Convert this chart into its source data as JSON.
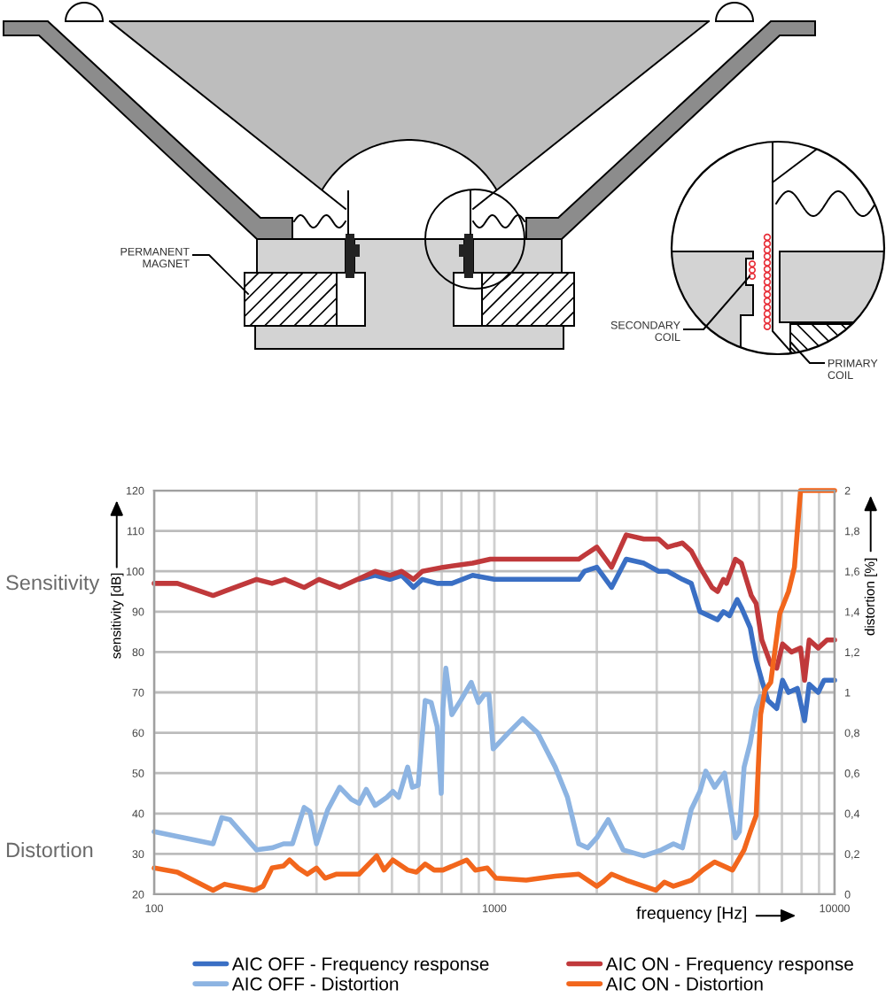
{
  "chart_data": {
    "type": "line",
    "log": "x",
    "grid": true,
    "legend": "bottom",
    "xlabel": "frequency [Hz]",
    "ylabel": "sensitivity [dB]",
    "y2label": "distortion [%]",
    "xlim": [
      100,
      10000
    ],
    "xticks": [
      100,
      {
        "value": 200,
        "label": null
      },
      {
        "value": 300,
        "label": null
      },
      {
        "value": 400,
        "label": null
      },
      {
        "value": 500,
        "label": null
      },
      {
        "value": 600,
        "label": null
      },
      {
        "value": 700,
        "label": null
      },
      {
        "value": 800,
        "label": null
      },
      {
        "value": 900,
        "label": null
      },
      1000,
      {
        "value": 2000,
        "label": null
      },
      {
        "value": 3000,
        "label": null
      },
      {
        "value": 4000,
        "label": null
      },
      {
        "value": 5000,
        "label": null
      },
      {
        "value": 6000,
        "label": null
      },
      {
        "value": 7000,
        "label": null
      },
      {
        "value": 8000,
        "label": null
      },
      {
        "value": 9000,
        "label": null
      },
      10000
    ],
    "ylim": [
      20,
      120
    ],
    "yticks": [
      20,
      30,
      40,
      50,
      60,
      70,
      80,
      90,
      100,
      110,
      120
    ],
    "y2lim": [
      0,
      2
    ],
    "y2ticks": [
      0,
      {
        "value": 0.2,
        "label": "0,2"
      },
      {
        "value": 0.4,
        "label": "0,4"
      },
      {
        "value": 0.6,
        "label": "0,6"
      },
      {
        "value": 0.8,
        "label": "0,8"
      },
      1,
      {
        "value": 1.2,
        "label": "1,2"
      },
      {
        "value": 1.4,
        "label": "1,4"
      },
      {
        "value": 1.6,
        "label": "1,6"
      },
      {
        "value": 1.8,
        "label": "1,8"
      },
      2
    ],
    "annotations": [
      "Sensitivity",
      "Distortion",
      "PERMANENT\nMAGNET",
      "SECONDARY\nCOIL",
      "PRIMARY\nCOIL"
    ],
    "series": [
      {
        "name": "AIC OFF - Frequency response",
        "color": "#3a6fc4",
        "x": [
          400,
          446,
          493,
          534,
          578,
          614,
          679,
          750,
          863,
          1000,
          1240,
          1700,
          1770,
          1840,
          2000,
          2210,
          2440,
          2750,
          3040,
          3230,
          3570,
          3790,
          4020,
          4270,
          4530,
          4710,
          4910,
          5170,
          5320,
          5650,
          5880,
          6110,
          6370,
          6760,
          7030,
          7320,
          7770,
          8160,
          8420,
          8950,
          9310,
          10000
        ],
        "values": [
          98,
          99,
          98,
          99,
          96,
          98,
          97,
          97,
          99,
          98,
          98,
          98,
          98,
          100,
          101,
          96,
          103,
          102,
          100,
          100,
          98,
          97,
          90,
          89,
          88,
          90,
          89,
          93,
          91,
          86,
          78,
          73,
          68,
          66,
          73,
          70,
          71,
          63,
          72,
          70,
          73,
          73
        ]
      },
      {
        "name": "AIC OFF - Distortion",
        "color": "#8db4e2",
        "axis": "y2",
        "x": [
          100,
          149,
          158,
          167,
          200,
          222,
          240,
          255,
          276,
          287,
          300,
          324,
          351,
          380,
          400,
          420,
          446,
          483,
          503,
          523,
          556,
          574,
          597,
          626,
          652,
          679,
          698,
          706,
          720,
          750,
          796,
          855,
          898,
          934,
          964,
          992,
          1100,
          1210,
          1340,
          1510,
          1640,
          1770,
          1880,
          2000,
          2160,
          2390,
          2750,
          3100,
          3360,
          3570,
          3790,
          4020,
          4180,
          4440,
          4750,
          4910,
          5110,
          5250,
          5420,
          5650,
          5880,
          6060
        ],
        "values": [
          0.31,
          0.25,
          0.38,
          0.37,
          0.22,
          0.23,
          0.25,
          0.25,
          0.43,
          0.41,
          0.25,
          0.42,
          0.53,
          0.47,
          0.45,
          0.52,
          0.44,
          0.48,
          0.51,
          0.48,
          0.63,
          0.53,
          0.54,
          0.96,
          0.95,
          0.83,
          0.5,
          0.92,
          1.12,
          0.89,
          0.96,
          1.05,
          0.95,
          0.99,
          0.99,
          0.72,
          0.8,
          0.87,
          0.8,
          0.63,
          0.48,
          0.25,
          0.23,
          0.28,
          0.37,
          0.22,
          0.19,
          0.22,
          0.25,
          0.23,
          0.42,
          0.51,
          0.61,
          0.53,
          0.6,
          0.45,
          0.28,
          0.31,
          0.63,
          0.75,
          0.92,
          0.98
        ]
      },
      {
        "name": "AIC ON - Frequency response",
        "color": "#c0393b",
        "x": [
          100,
          117,
          149,
          200,
          222,
          242,
          276,
          305,
          351,
          446,
          493,
          534,
          578,
          614,
          706,
          863,
          973,
          1240,
          1700,
          1770,
          1840,
          2000,
          2210,
          2440,
          2750,
          3040,
          3230,
          3570,
          3790,
          4020,
          4360,
          4530,
          4710,
          4810,
          5110,
          5320,
          5690,
          5880,
          6110,
          6490,
          6760,
          7030,
          7470,
          7940,
          8160,
          8420,
          8950,
          9500,
          10000
        ],
        "values": [
          97,
          97,
          94,
          98,
          97,
          98,
          96,
          98,
          96,
          100,
          99,
          100,
          98,
          100,
          101,
          102,
          103,
          103,
          103,
          103,
          104,
          106,
          101,
          109,
          108,
          108,
          106,
          107,
          105,
          101,
          96,
          95,
          98,
          97,
          103,
          102,
          94,
          92,
          83,
          77,
          76,
          82,
          80,
          81,
          73,
          83,
          81,
          83,
          83
        ]
      },
      {
        "name": "AIC ON - Distortion",
        "color": "#f2661c",
        "axis": "y2",
        "x": [
          100,
          117,
          149,
          161,
          197,
          209,
          222,
          240,
          250,
          265,
          282,
          300,
          318,
          344,
          400,
          451,
          474,
          503,
          556,
          590,
          626,
          665,
          706,
          829,
          879,
          953,
          1010,
          1240,
          1510,
          1770,
          2000,
          2080,
          2210,
          2440,
          2750,
          2980,
          3160,
          3360,
          3790,
          4100,
          4440,
          5010,
          5420,
          5650,
          5880,
          6060,
          6240,
          6490,
          6900,
          7320,
          7620,
          7940,
          10000
        ],
        "values": [
          0.13,
          0.11,
          0.02,
          0.05,
          0.02,
          0.04,
          0.13,
          0.14,
          0.17,
          0.13,
          0.1,
          0.13,
          0.08,
          0.1,
          0.1,
          0.19,
          0.12,
          0.17,
          0.12,
          0.11,
          0.15,
          0.12,
          0.12,
          0.17,
          0.12,
          0.13,
          0.08,
          0.07,
          0.09,
          0.1,
          0.04,
          0.06,
          0.1,
          0.07,
          0.04,
          0.02,
          0.06,
          0.04,
          0.07,
          0.12,
          0.16,
          0.12,
          0.22,
          0.31,
          0.39,
          0.89,
          1.01,
          1.05,
          1.39,
          1.5,
          1.62,
          2,
          2
        ]
      }
    ]
  }
}
